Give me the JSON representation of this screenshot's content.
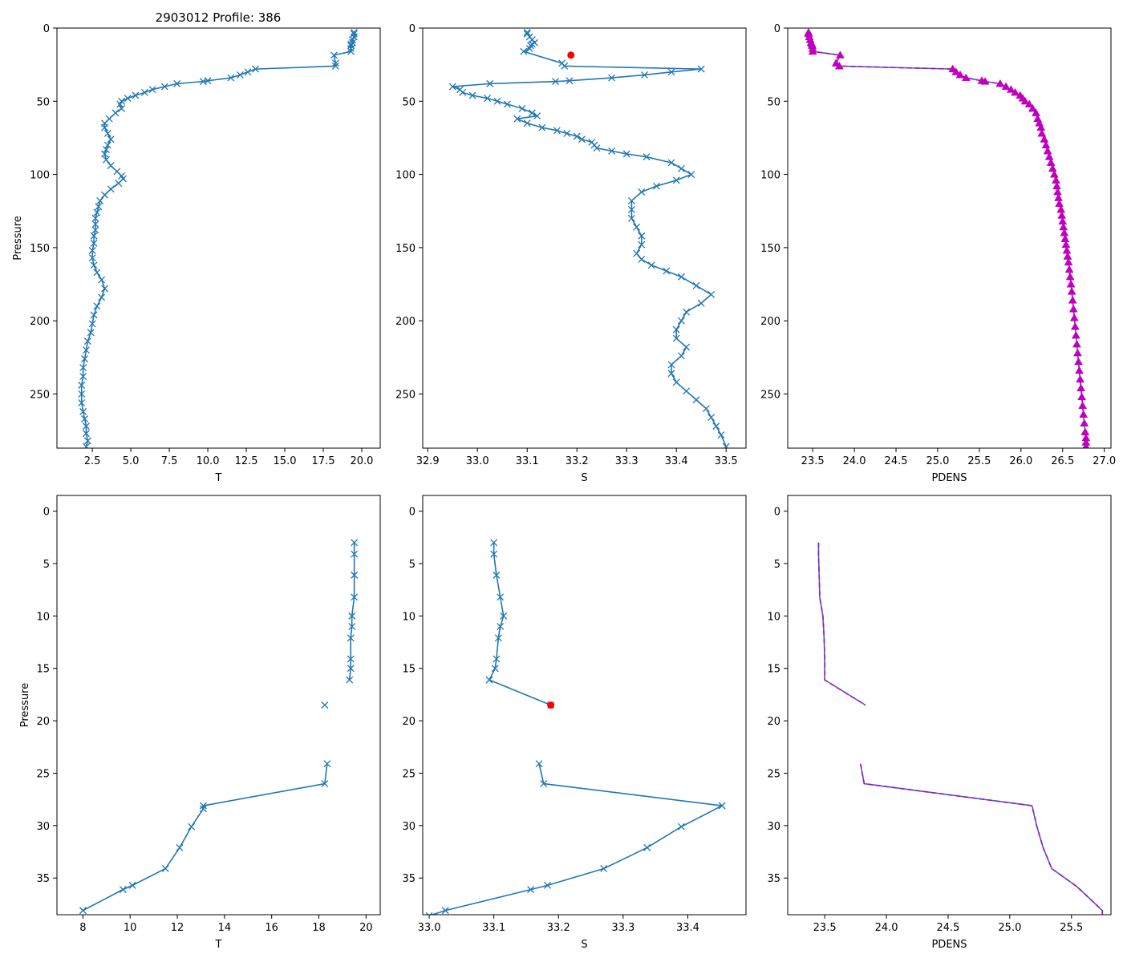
{
  "figure": {
    "title": "2903012 Profile: 386",
    "colors": {
      "series": "#1f77b4",
      "density": "#bf00bf",
      "flag": "#ff0000",
      "axis": "#000000"
    }
  },
  "chart_data": [
    {
      "id": "top-temperature",
      "type": "line",
      "title": "2903012 Profile: 386",
      "xlabel": "T",
      "ylabel": "Pressure",
      "xlim": [
        0.2,
        21.2
      ],
      "ylim": [
        287,
        0
      ],
      "xticks": [
        2.5,
        5.0,
        7.5,
        10.0,
        12.5,
        15.0,
        17.5,
        20.0
      ],
      "xtick_labels": [
        "2.5",
        "5.0",
        "7.5",
        "10.0",
        "12.5",
        "15.0",
        "17.5",
        "20.0"
      ],
      "yticks": [
        0,
        50,
        100,
        150,
        200,
        250
      ],
      "ytick_labels": [
        "0",
        "50",
        "100",
        "150",
        "200",
        "250"
      ],
      "marker": "x",
      "series": [
        {
          "name": "T",
          "x": [
            19.5,
            19.5,
            19.5,
            19.4,
            19.4,
            19.3,
            19.3,
            19.3,
            19.3,
            18.2,
            18.3,
            18.3,
            13.1,
            12.6,
            12.1,
            11.5,
            10.0,
            9.7,
            8.0,
            7.2,
            6.4,
            5.9,
            5.3,
            4.8,
            4.4,
            4.3,
            4.4,
            4.0,
            3.6,
            3.3,
            3.3,
            3.5,
            3.7,
            3.5,
            3.4,
            3.3,
            3.4,
            3.7,
            4.1,
            4.4,
            4.5,
            4.2,
            3.7,
            3.3,
            3.0,
            2.9,
            2.8,
            2.7,
            2.7,
            2.7,
            2.6,
            2.6,
            2.5,
            2.5,
            2.6,
            2.8,
            3.1,
            3.3,
            3.1,
            2.8,
            2.6,
            2.5,
            2.4,
            2.2,
            2.1,
            2.0,
            1.9,
            1.9,
            1.8,
            1.8,
            1.8,
            1.9,
            2.0,
            2.1,
            2.1,
            2.2,
            2.1
          ],
          "y": [
            3,
            4,
            6,
            8,
            10,
            11,
            12,
            14,
            16,
            18.5,
            24,
            26,
            28,
            30,
            32,
            34,
            36,
            36.5,
            38,
            40,
            42,
            44,
            46,
            48,
            50,
            52,
            55,
            58,
            62,
            65,
            68,
            72,
            76,
            80,
            83,
            86,
            90,
            94,
            98,
            101,
            103,
            106,
            110,
            114,
            118,
            122,
            126,
            130,
            134,
            138,
            142,
            147,
            152,
            157,
            162,
            167,
            172,
            178,
            184,
            190,
            196,
            202,
            208,
            214,
            220,
            226,
            232,
            238,
            244,
            250,
            256,
            262,
            267,
            272,
            277,
            282,
            286
          ]
        }
      ]
    },
    {
      "id": "top-salinity",
      "type": "line",
      "title": "",
      "xlabel": "S",
      "ylabel": "",
      "xlim": [
        32.89,
        33.54
      ],
      "ylim": [
        287,
        0
      ],
      "xticks": [
        32.9,
        33.0,
        33.1,
        33.2,
        33.3,
        33.4,
        33.5
      ],
      "xtick_labels": [
        "32.9",
        "33.0",
        "33.1",
        "33.2",
        "33.3",
        "33.4",
        "33.5"
      ],
      "yticks": [
        0,
        50,
        100,
        150,
        200,
        250
      ],
      "ytick_labels": [
        "0",
        "50",
        "100",
        "150",
        "200",
        "250"
      ],
      "marker": "x",
      "series": [
        {
          "name": "S",
          "x": [
            33.1,
            33.1,
            33.105,
            33.11,
            33.115,
            33.11,
            33.107,
            33.105,
            33.093,
            33.17,
            33.175,
            33.45,
            33.39,
            33.336,
            33.27,
            33.185,
            33.157,
            33.025,
            32.95,
            32.965,
            32.97,
            32.99,
            33.02,
            33.04,
            33.06,
            33.09,
            33.11,
            33.12,
            33.08,
            33.1,
            33.13,
            33.16,
            33.18,
            33.2,
            33.21,
            33.23,
            33.235,
            33.24,
            33.27,
            33.3,
            33.34,
            33.39,
            33.41,
            33.43,
            33.4,
            33.36,
            33.33,
            33.31,
            33.31,
            33.31,
            33.32,
            33.33,
            33.33,
            33.32,
            33.33,
            33.35,
            33.38,
            33.41,
            33.44,
            33.47,
            33.45,
            33.42,
            33.41,
            33.4,
            33.4,
            33.42,
            33.41,
            33.39,
            33.39,
            33.4,
            33.42,
            33.44,
            33.46,
            33.47,
            33.48,
            33.49,
            33.5
          ],
          "y": [
            3,
            4,
            6,
            8,
            10,
            11,
            12,
            14,
            16,
            24,
            26,
            28,
            30,
            32,
            34,
            36,
            36.5,
            38,
            40,
            42,
            44,
            46,
            48,
            50,
            52,
            55,
            58,
            60,
            62,
            65,
            68,
            70,
            72,
            74,
            76,
            78,
            80,
            82,
            84,
            86,
            88,
            92,
            96,
            100,
            104,
            108,
            112,
            118,
            124,
            130,
            136,
            142,
            148,
            154,
            158,
            162,
            166,
            170,
            176,
            182,
            188,
            194,
            200,
            206,
            212,
            218,
            224,
            230,
            236,
            242,
            248,
            254,
            260,
            266,
            272,
            278,
            286
          ]
        },
        {
          "name": "flagged S",
          "x": [
            33.188
          ],
          "y": [
            18.5
          ]
        }
      ]
    },
    {
      "id": "top-density",
      "type": "line",
      "title": "",
      "xlabel": "PDENS",
      "ylabel": "",
      "xlim": [
        23.2,
        27.08
      ],
      "ylim": [
        287,
        0
      ],
      "xticks": [
        23.5,
        24.0,
        24.5,
        25.0,
        25.5,
        26.0,
        26.5,
        27.0
      ],
      "xtick_labels": [
        "23.5",
        "24.0",
        "24.5",
        "25.0",
        "25.5",
        "26.0",
        "26.5",
        "27.0"
      ],
      "yticks": [
        0,
        50,
        100,
        150,
        200,
        250
      ],
      "ytick_labels": [
        "0",
        "50",
        "100",
        "150",
        "200",
        "250"
      ],
      "marker": "^",
      "series": [
        {
          "name": "PDENS",
          "x": [
            23.45,
            23.45,
            23.46,
            23.47,
            23.48,
            23.49,
            23.495,
            23.5,
            23.5,
            23.83,
            23.78,
            23.82,
            25.18,
            25.22,
            25.27,
            25.34,
            25.53,
            25.57,
            25.75,
            25.82,
            25.88,
            25.93,
            25.99,
            26.02,
            26.05,
            26.1,
            26.14,
            26.18,
            26.2,
            26.22,
            26.24,
            26.25,
            26.28,
            26.3,
            26.32,
            26.34,
            26.36,
            26.38,
            26.4,
            26.42,
            26.43,
            26.44,
            26.45,
            26.46,
            26.48,
            26.49,
            26.5,
            26.51,
            26.52,
            26.53,
            26.54,
            26.55,
            26.56,
            26.57,
            26.58,
            26.59,
            26.6,
            26.61,
            26.62,
            26.63,
            26.64,
            26.65,
            26.66,
            26.67,
            26.68,
            26.69,
            26.7,
            26.71,
            26.72,
            26.73,
            26.74,
            26.75,
            26.76,
            26.77,
            26.78,
            26.78,
            26.78
          ],
          "y": [
            3,
            4,
            6,
            8,
            10,
            11,
            12,
            14,
            16,
            18.5,
            24,
            26,
            28,
            30,
            32,
            34,
            36,
            36.5,
            38,
            40,
            42,
            44,
            46,
            48,
            50,
            52,
            55,
            58,
            62,
            65,
            68,
            72,
            76,
            80,
            84,
            88,
            92,
            96,
            100,
            104,
            108,
            112,
            116,
            120,
            124,
            128,
            132,
            136,
            140,
            144,
            148,
            152,
            156,
            160,
            165,
            170,
            175,
            180,
            186,
            192,
            198,
            204,
            210,
            216,
            222,
            228,
            234,
            240,
            246,
            252,
            258,
            264,
            270,
            276,
            280,
            283,
            286
          ]
        }
      ]
    },
    {
      "id": "bottom-temperature",
      "type": "line",
      "title": "",
      "xlabel": "T",
      "ylabel": "Pressure",
      "xlim": [
        6.9,
        20.6
      ],
      "ylim": [
        38.5,
        -1.5
      ],
      "xticks": [
        8,
        10,
        12,
        14,
        16,
        18,
        20
      ],
      "xtick_labels": [
        "8",
        "10",
        "12",
        "14",
        "16",
        "18",
        "20"
      ],
      "yticks": [
        0,
        5,
        10,
        15,
        20,
        25,
        30,
        35
      ],
      "ytick_labels": [
        "0",
        "5",
        "10",
        "15",
        "20",
        "25",
        "30",
        "35"
      ],
      "marker": "x",
      "series": [
        {
          "name": "T",
          "x": [
            19.5,
            19.5,
            19.5,
            19.5,
            19.4,
            19.4,
            19.35,
            19.35,
            19.35,
            19.3
          ],
          "y": [
            3,
            4.1,
            6.1,
            8.2,
            10,
            11,
            12.1,
            14.1,
            15,
            16.1
          ]
        },
        {
          "name": "T (segment 2)",
          "x": [
            18.25
          ],
          "y": [
            18.5
          ]
        },
        {
          "name": "T (segment 3)",
          "x": [
            18.35,
            18.25,
            13.1,
            13.1,
            12.6,
            12.1,
            11.5,
            10.1,
            9.7,
            8.0
          ],
          "y": [
            24.1,
            26.0,
            28.1,
            28.4,
            30.1,
            32.1,
            34.1,
            35.7,
            36.1,
            38.1
          ]
        }
      ]
    },
    {
      "id": "bottom-salinity",
      "type": "line",
      "title": "",
      "xlabel": "S",
      "ylabel": "",
      "xlim": [
        32.99,
        33.49
      ],
      "ylim": [
        38.5,
        -1.5
      ],
      "xticks": [
        33.0,
        33.1,
        33.2,
        33.3,
        33.4
      ],
      "xtick_labels": [
        "33.0",
        "33.1",
        "33.2",
        "33.3",
        "33.4"
      ],
      "yticks": [
        0,
        5,
        10,
        15,
        20,
        25,
        30,
        35
      ],
      "ytick_labels": [
        "0",
        "5",
        "10",
        "15",
        "20",
        "25",
        "30",
        "35"
      ],
      "marker": "x",
      "series": [
        {
          "name": "S",
          "x": [
            33.1,
            33.1,
            33.104,
            33.11,
            33.115,
            33.11,
            33.107,
            33.104,
            33.102,
            33.093,
            33.188
          ],
          "y": [
            3,
            4.1,
            6.1,
            8.2,
            10,
            11,
            12.1,
            14.1,
            15,
            16.1,
            18.5
          ]
        },
        {
          "name": "S (segment 2)",
          "x": [
            33.17,
            33.177,
            33.453,
            33.39,
            33.337,
            33.27,
            33.183,
            33.157,
            33.025,
            33.0
          ],
          "y": [
            24.1,
            26.0,
            28.1,
            30.1,
            32.1,
            34.1,
            35.7,
            36.1,
            38.1,
            38.6
          ]
        },
        {
          "name": "flagged S",
          "x": [
            33.188
          ],
          "y": [
            18.5
          ]
        }
      ]
    },
    {
      "id": "bottom-density",
      "type": "line",
      "title": "",
      "xlabel": "PDENS",
      "ylabel": "",
      "xlim": [
        23.2,
        25.82
      ],
      "ylim": [
        38.5,
        -1.5
      ],
      "xticks": [
        23.5,
        24.0,
        24.5,
        25.0,
        25.5
      ],
      "xtick_labels": [
        "23.5",
        "24.0",
        "24.5",
        "25.0",
        "25.5"
      ],
      "yticks": [
        0,
        5,
        10,
        15,
        20,
        25,
        30,
        35
      ],
      "ytick_labels": [
        "0",
        "5",
        "10",
        "15",
        "20",
        "25",
        "30",
        "35"
      ],
      "marker": "none",
      "series": [
        {
          "name": "PDENS",
          "x": [
            23.45,
            23.45,
            23.455,
            23.46,
            23.485,
            23.49,
            23.495,
            23.5,
            23.5,
            23.5,
            23.83
          ],
          "y": [
            3,
            4.1,
            6.1,
            8.2,
            10,
            11,
            12.1,
            14.1,
            15,
            16.1,
            18.5
          ]
        },
        {
          "name": "PDENS (segment 2)",
          "x": [
            23.79,
            23.82,
            25.18,
            25.22,
            25.27,
            25.34,
            25.53,
            25.57,
            25.75,
            25.75
          ],
          "y": [
            24.1,
            26.0,
            28.1,
            30.1,
            32.1,
            34.1,
            35.7,
            36.1,
            38.1,
            38.6
          ]
        }
      ]
    }
  ]
}
